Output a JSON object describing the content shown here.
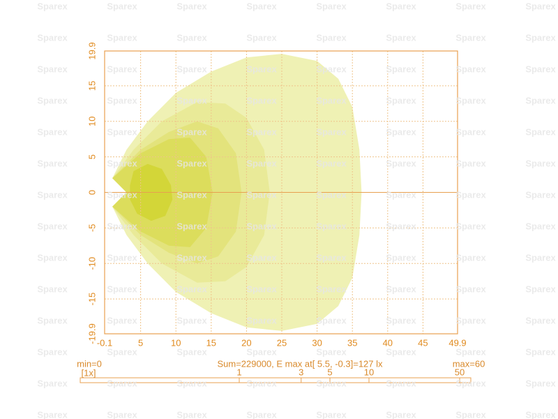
{
  "watermark": "Sparex",
  "chart_data": {
    "type": "isolux",
    "xlim": [
      -0.1,
      49.9
    ],
    "xticks": [
      -0.1,
      5,
      10,
      15,
      20,
      25,
      30,
      35,
      40,
      45,
      49.9
    ],
    "ylim": [
      -19.9,
      19.9
    ],
    "yticks": [
      -19.9,
      -15,
      -10,
      -5,
      0,
      5,
      10,
      15,
      19.9
    ],
    "grid": true,
    "min_label": "min=0",
    "max_label": "max=60",
    "summary": "Sum=229000, E max at[ 5.5, -0.3]=127 lx",
    "scale_label": "[1x]",
    "levels": [
      1,
      3,
      5,
      10,
      50
    ],
    "contours": [
      {
        "color": "#eff1b4",
        "x": [
          1,
          3,
          6,
          10,
          15,
          20,
          25,
          30,
          33,
          35,
          36,
          36.3,
          36,
          35,
          33,
          30,
          25,
          20,
          15,
          10,
          6,
          3,
          1,
          3
        ],
        "y": [
          2,
          6,
          10,
          14,
          17,
          19,
          19.5,
          18.5,
          16,
          12,
          6,
          0,
          -6,
          -12,
          -16,
          -18.5,
          -19.5,
          -19,
          -17,
          -14,
          -10,
          -6,
          -2,
          0
        ]
      },
      {
        "color": "#e9ea98",
        "x": [
          1,
          4,
          8,
          13,
          17,
          20,
          22.5,
          23.3,
          22.5,
          20,
          17,
          13,
          8,
          4,
          1,
          3
        ],
        "y": [
          2,
          6,
          10,
          12.7,
          12.5,
          10.5,
          6,
          0,
          -6,
          -10.5,
          -12.5,
          -12.7,
          -10,
          -6,
          -2,
          0
        ]
      },
      {
        "color": "#e3e37c",
        "x": [
          1,
          5,
          9,
          13,
          16,
          18.5,
          19.3,
          18.5,
          16,
          13,
          9,
          5,
          1,
          3
        ],
        "y": [
          2,
          6,
          8.5,
          10,
          9,
          5.5,
          0,
          -5.5,
          -9,
          -10,
          -8.5,
          -6,
          -2,
          0
        ]
      },
      {
        "color": "#dcdd5c",
        "x": [
          1,
          5,
          9,
          12,
          14.3,
          15.2,
          14.3,
          12,
          9,
          5,
          1,
          3
        ],
        "y": [
          2,
          5.5,
          7.5,
          7.7,
          5,
          0,
          -5,
          -7.7,
          -7.5,
          -5.5,
          -2,
          0
        ]
      },
      {
        "color": "#d3d638",
        "x": [
          4,
          6,
          8,
          9.3,
          9.5,
          8.5,
          6.5,
          4.5,
          3.5,
          3.5
        ],
        "y": [
          3,
          4,
          3.3,
          1,
          -1,
          -3.3,
          -4,
          -3,
          -1,
          1
        ]
      }
    ]
  }
}
